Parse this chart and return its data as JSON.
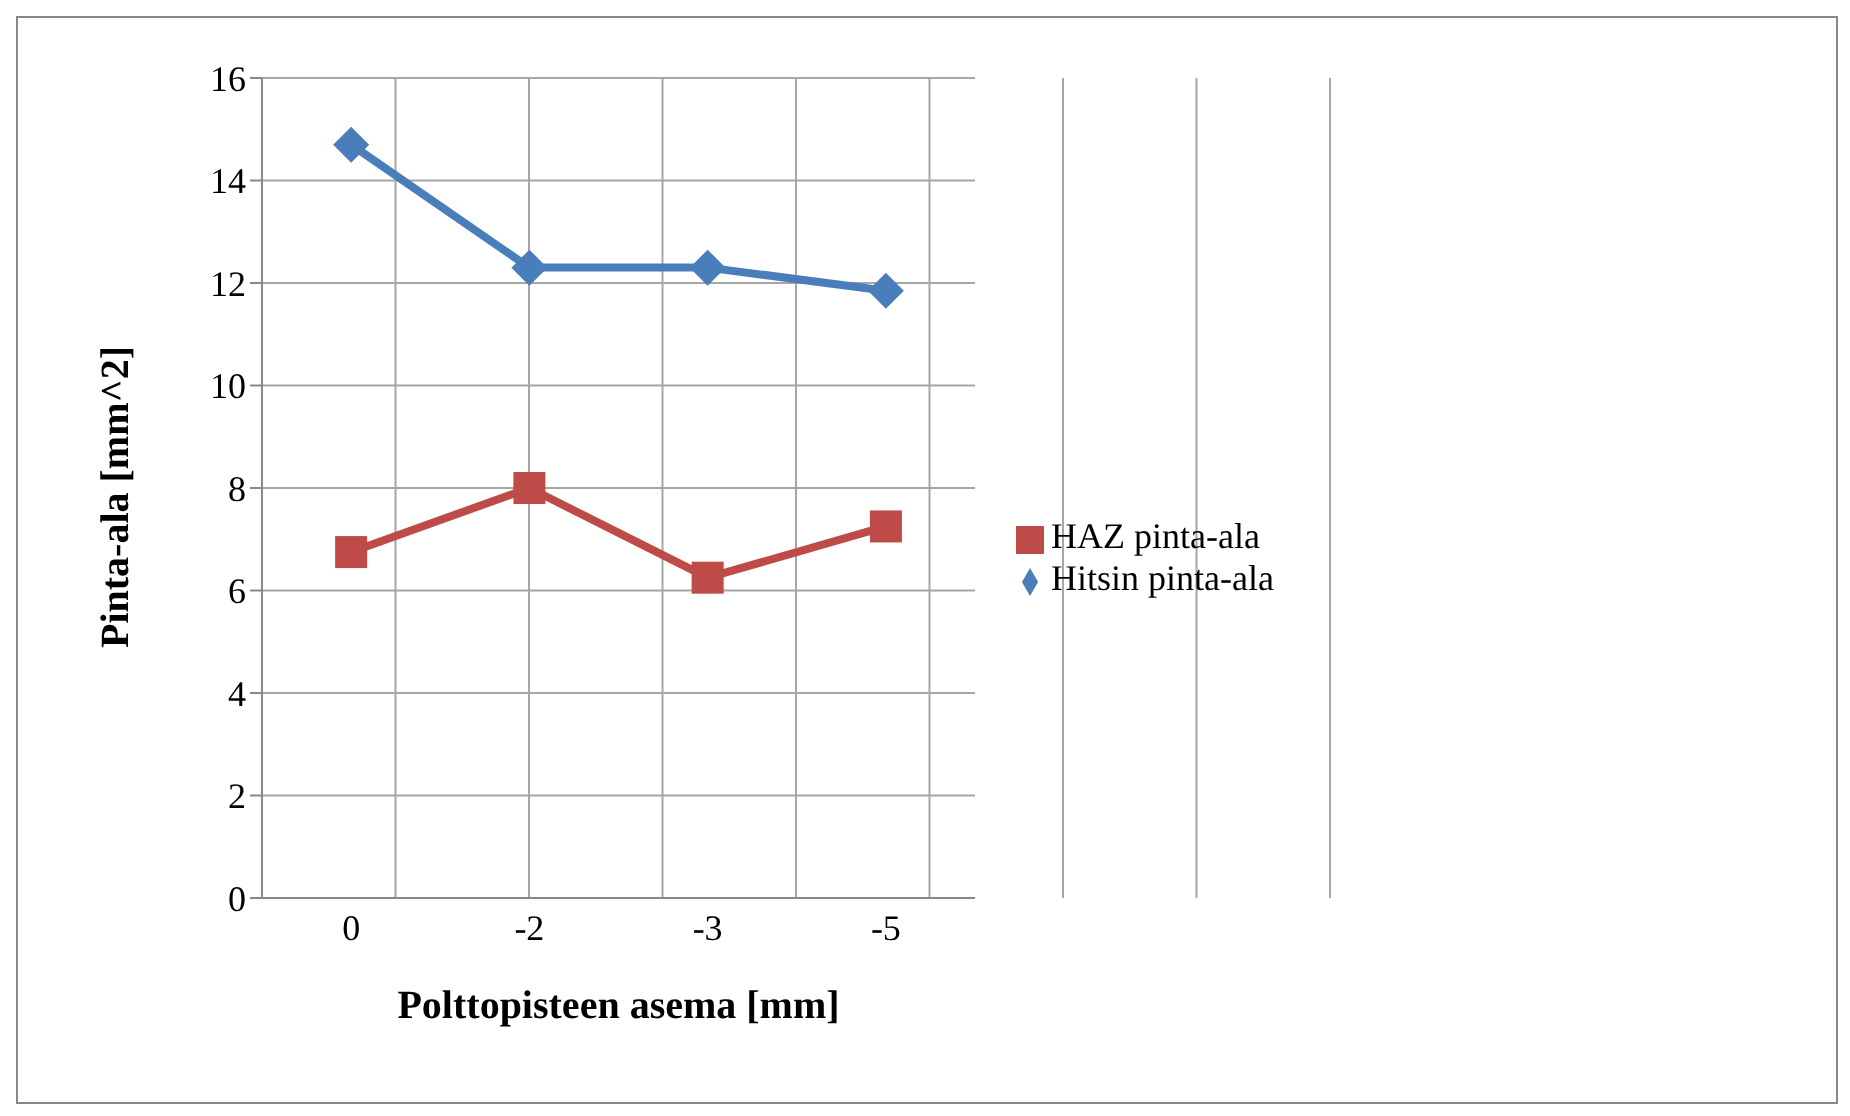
{
  "chart_data": {
    "type": "line",
    "xlabel": "Polttopisteen asema [mm]",
    "ylabel": "Pinta-ala [mm^2]",
    "categories": [
      "0",
      "-2",
      "-3",
      "-5"
    ],
    "series": [
      {
        "name": "Hitsin pinta-ala",
        "color": "#4a7ebb",
        "marker": "diamond",
        "values": [
          14.7,
          12.3,
          12.3,
          11.85
        ]
      },
      {
        "name": "HAZ pinta-ala",
        "color": "#be4b48",
        "marker": "square",
        "values": [
          6.75,
          8.0,
          6.25,
          7.25
        ]
      }
    ],
    "ylim": [
      0,
      16
    ],
    "yticks": [
      0,
      2,
      4,
      6,
      8,
      10,
      12,
      14,
      16
    ],
    "grid": true,
    "legend": "right"
  }
}
